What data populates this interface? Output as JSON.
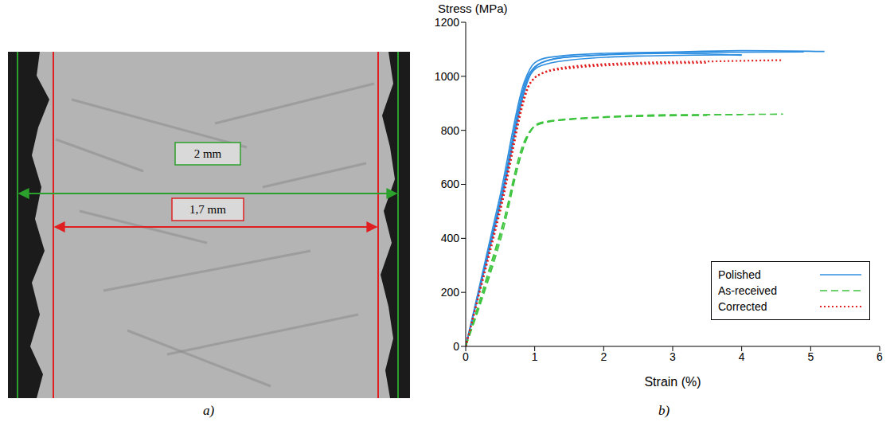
{
  "figure": {
    "panel_labels": [
      "a)",
      "b)"
    ],
    "micrograph": {
      "outer_width": "2 mm",
      "inner_width": "1,7 mm"
    }
  },
  "chart_data": {
    "type": "line",
    "y_label": "Stress (MPa)",
    "x_label": "Strain (%)",
    "xlim": [
      0,
      6
    ],
    "xticks": [
      0,
      1,
      2,
      3,
      4,
      5,
      6
    ],
    "ylim": [
      0,
      1200
    ],
    "yticks": [
      0,
      200,
      400,
      600,
      800,
      1000,
      1200
    ],
    "grid": false,
    "legend": "lower right",
    "series": [
      {
        "name": "Polished",
        "color": "#2e8ee0",
        "line_style": "solid",
        "x": [
          0,
          0.5,
          0.85,
          1.0,
          1.2,
          2,
          3,
          4,
          5.2
        ],
        "values": [
          0,
          560,
          980,
          1050,
          1070,
          1085,
          1090,
          1095,
          1092
        ]
      },
      {
        "name": "Polished",
        "color": "#2e8ee0",
        "line_style": "solid",
        "x": [
          0,
          0.5,
          0.9,
          1.05,
          1.3,
          2,
          3,
          4.9
        ],
        "values": [
          0,
          540,
          1000,
          1045,
          1065,
          1080,
          1088,
          1090
        ]
      },
      {
        "name": "Polished",
        "color": "#2e8ee0",
        "line_style": "solid",
        "x": [
          0,
          0.5,
          0.95,
          1.1,
          1.5,
          2.5,
          4.0
        ],
        "values": [
          0,
          520,
          1010,
          1040,
          1060,
          1075,
          1080
        ]
      },
      {
        "name": "Polished",
        "color": "#2e8ee0",
        "line_style": "solid",
        "x": [
          0,
          0.5,
          0.9,
          1.1,
          1.5,
          3,
          4.0
        ],
        "values": [
          0,
          530,
          990,
          1050,
          1072,
          1085,
          1078
        ]
      },
      {
        "name": "As-received",
        "color": "#3ec43e",
        "line_style": "dashed",
        "x": [
          0,
          0.5,
          0.85,
          1.0,
          1.3,
          2,
          3,
          4.6
        ],
        "values": [
          0,
          410,
          760,
          815,
          835,
          848,
          855,
          860
        ]
      },
      {
        "name": "As-received",
        "color": "#3ec43e",
        "line_style": "dashed",
        "x": [
          0,
          0.5,
          0.9,
          1.05,
          1.5,
          2.5,
          3.5
        ],
        "values": [
          0,
          390,
          780,
          825,
          840,
          852,
          855
        ]
      },
      {
        "name": "As-received",
        "color": "#3ec43e",
        "line_style": "dashed",
        "x": [
          0,
          0.5,
          0.95,
          1.1,
          2,
          3.2,
          4.0
        ],
        "values": [
          0,
          420,
          800,
          830,
          850,
          858,
          858
        ]
      },
      {
        "name": "Corrected",
        "color": "#e02020",
        "line_style": "dotted",
        "x": [
          0,
          0.5,
          0.9,
          1.1,
          1.5,
          2.5,
          3.5,
          4.6
        ],
        "values": [
          0,
          520,
          960,
          1010,
          1035,
          1050,
          1055,
          1060
        ]
      },
      {
        "name": "Corrected",
        "color": "#e02020",
        "line_style": "dotted",
        "x": [
          0,
          0.5,
          0.95,
          1.15,
          1.5,
          2.5,
          3.5
        ],
        "values": [
          0,
          500,
          980,
          1015,
          1030,
          1045,
          1050
        ]
      }
    ]
  }
}
